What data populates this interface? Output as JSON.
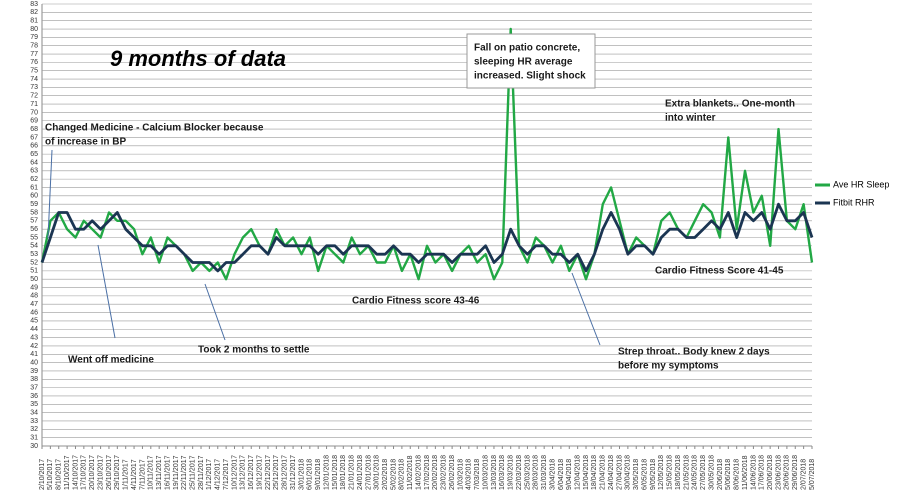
{
  "chart_data": {
    "type": "line",
    "title": "9 months of data",
    "categories": [
      "2/10/2017",
      "5/10/2017",
      "8/10/2017",
      "11/10/2017",
      "14/10/2017",
      "17/10/2017",
      "20/10/2017",
      "23/10/2017",
      "26/10/2017",
      "29/10/2017",
      "1/11/2017",
      "4/11/2017",
      "7/11/2017",
      "10/11/2017",
      "13/11/2017",
      "16/11/2017",
      "19/11/2017",
      "22/11/2017",
      "25/11/2017",
      "28/11/2017",
      "1/12/2017",
      "4/12/2017",
      "7/12/2017",
      "10/12/2017",
      "13/12/2017",
      "16/12/2017",
      "19/12/2017",
      "22/12/2017",
      "25/12/2017",
      "28/12/2017",
      "31/12/2017",
      "3/01/2018",
      "6/01/2018",
      "9/01/2018",
      "12/01/2018",
      "15/01/2018",
      "18/01/2018",
      "21/01/2018",
      "24/01/2018",
      "27/01/2018",
      "30/01/2018",
      "2/02/2018",
      "5/02/2018",
      "8/02/2018",
      "11/02/2018",
      "14/02/2018",
      "17/02/2018",
      "20/02/2018",
      "23/02/2018",
      "26/02/2018",
      "1/03/2018",
      "4/03/2018",
      "7/03/2018",
      "10/03/2018",
      "13/03/2018",
      "16/03/2018",
      "19/03/2018",
      "22/03/2018",
      "25/03/2018",
      "28/03/2018",
      "31/03/2018",
      "3/04/2018",
      "6/04/2018",
      "9/04/2018",
      "12/04/2018",
      "15/04/2018",
      "18/04/2018",
      "21/04/2018",
      "24/04/2018",
      "27/04/2018",
      "30/04/2018",
      "3/05/2018",
      "6/05/2018",
      "9/05/2018",
      "12/05/2018",
      "15/05/2018",
      "18/05/2018",
      "21/05/2018",
      "24/05/2018",
      "27/05/2018",
      "30/05/2018",
      "2/06/2018",
      "5/06/2018",
      "8/06/2018",
      "11/06/2018",
      "14/06/2018",
      "17/06/2018",
      "20/06/2018",
      "23/06/2018",
      "26/06/2018",
      "29/06/2018",
      "2/07/2018",
      "5/07/2018"
    ],
    "series": [
      {
        "name": "Ave HR Sleep",
        "color": "#22a845",
        "values": [
          52,
          57,
          58,
          56,
          55,
          57,
          56,
          55,
          58,
          57,
          57,
          56,
          53,
          55,
          52,
          55,
          54,
          53,
          51,
          52,
          51,
          52,
          50,
          53,
          55,
          56,
          54,
          53,
          56,
          54,
          55,
          53,
          55,
          51,
          54,
          53,
          52,
          55,
          53,
          54,
          52,
          52,
          54,
          51,
          53,
          50,
          54,
          52,
          53,
          51,
          53,
          54,
          52,
          53,
          50,
          52,
          80,
          54,
          52,
          55,
          54,
          52,
          54,
          51,
          53,
          50,
          53,
          59,
          61,
          57,
          53,
          55,
          54,
          53,
          57,
          58,
          56,
          55,
          57,
          59,
          58,
          55,
          67,
          56,
          63,
          58,
          60,
          54,
          68,
          57,
          56,
          59,
          52
        ]
      },
      {
        "name": "Fitbit RHR",
        "color": "#1b3552",
        "values": [
          52,
          55,
          58,
          58,
          56,
          56,
          57,
          56,
          57,
          58,
          56,
          55,
          54,
          54,
          53,
          54,
          54,
          53,
          52,
          52,
          52,
          51,
          52,
          52,
          53,
          54,
          54,
          53,
          55,
          54,
          54,
          54,
          54,
          53,
          54,
          54,
          53,
          54,
          54,
          54,
          53,
          53,
          54,
          53,
          53,
          52,
          53,
          53,
          53,
          52,
          53,
          53,
          53,
          54,
          52,
          53,
          56,
          54,
          53,
          54,
          54,
          53,
          53,
          52,
          53,
          51,
          53,
          56,
          58,
          56,
          53,
          54,
          54,
          53,
          55,
          56,
          56,
          55,
          55,
          56,
          57,
          56,
          58,
          55,
          58,
          57,
          58,
          56,
          59,
          57,
          57,
          58,
          55
        ]
      }
    ],
    "ylim": [
      30,
      83
    ],
    "yticks": [
      30,
      31,
      32,
      33,
      34,
      35,
      36,
      37,
      38,
      39,
      40,
      41,
      42,
      43,
      44,
      45,
      46,
      47,
      48,
      49,
      50,
      51,
      52,
      53,
      54,
      55,
      56,
      57,
      58,
      59,
      60,
      61,
      62,
      63,
      64,
      65,
      66,
      67,
      68,
      69,
      70,
      71,
      72,
      73,
      74,
      75,
      76,
      77,
      78,
      79,
      80,
      81,
      82,
      83
    ],
    "grid": true,
    "legend": "right",
    "annotations": [
      [
        "Changed Medicine - Calcium Blocker because",
        "of increase in BP"
      ],
      [
        "Went off medicine"
      ],
      [
        "Took 2 months to settle"
      ],
      [
        "Cardio Fitness score 43-46"
      ],
      [
        "Fall on patio concrete,",
        "sleeping HR average",
        "increased. Slight shock"
      ],
      [
        "Extra blankets.. One-month",
        "into winter"
      ],
      [
        "Cardio Fitness Score 41-45"
      ],
      [
        "Strep throat.. Body knew 2 days",
        "before my symptoms"
      ]
    ]
  }
}
